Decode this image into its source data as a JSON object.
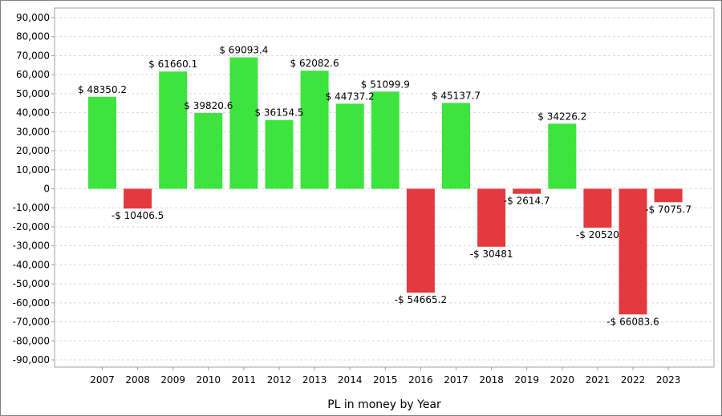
{
  "chart_data": {
    "type": "bar",
    "title": "",
    "xlabel": "PL in money by Year",
    "ylabel": "",
    "ylim": [
      -90000,
      90000
    ],
    "ytick_step": 10000,
    "yticks": [
      "90,000",
      "80,000",
      "70,000",
      "60,000",
      "50,000",
      "40,000",
      "30,000",
      "20,000",
      "10,000",
      "0",
      "-10,000",
      "-20,000",
      "-30,000",
      "-40,000",
      "-50,000",
      "-60,000",
      "-70,000",
      "-80,000",
      "-90,000"
    ],
    "grid": true,
    "colors": {
      "positive": "#3de43d",
      "negative": "#e23a3f",
      "grid": "#d9d9d9",
      "axis": "#a0a0a0"
    },
    "categories": [
      "2007",
      "2008",
      "2009",
      "2010",
      "2011",
      "2012",
      "2013",
      "2014",
      "2015",
      "2016",
      "2017",
      "2018",
      "2019",
      "2020",
      "2021",
      "2022",
      "2023"
    ],
    "values": [
      48350.2,
      -10406.5,
      61660.1,
      39820.6,
      69093.4,
      36154.5,
      62082.6,
      44737.2,
      51099.9,
      -54665.2,
      45137.7,
      -30481,
      -2614.7,
      34226.2,
      -20520,
      -66083.6,
      -7075.7
    ],
    "data_labels": [
      "$ 48350.2",
      "-$ 10406.5",
      "$ 61660.1",
      "$ 39820.6",
      "$ 69093.4",
      "$ 36154.5",
      "$ 62082.6",
      "$ 44737.2",
      "$ 51099.9",
      "-$ 54665.2",
      "$ 45137.7",
      "-$ 30481",
      "-$ 2614.7",
      "$ 34226.2",
      "-$ 20520",
      "-$ 66083.6",
      "-$ 7075.7"
    ]
  }
}
